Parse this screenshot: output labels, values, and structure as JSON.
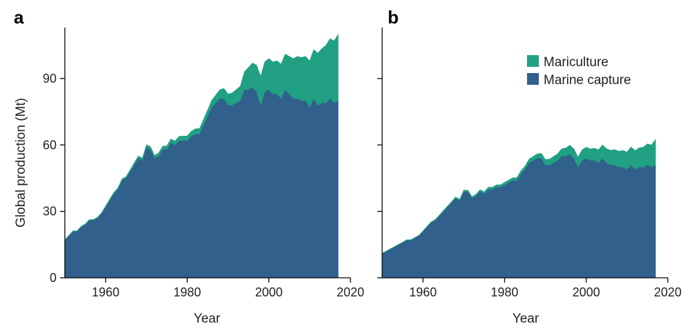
{
  "colors": {
    "mariculture": "#21a083",
    "marine_capture": "#30608b",
    "axis": "#000000"
  },
  "chart_data": [
    {
      "type": "area",
      "panel": "a",
      "stacked": true,
      "xlabel": "Year",
      "ylabel": "Global production (Mt)",
      "xlim": [
        1950,
        2020
      ],
      "ylim": [
        0,
        113
      ],
      "xticks": [
        1960,
        1980,
        2000,
        2020
      ],
      "yticks": [
        0,
        30,
        60,
        90
      ],
      "x": [
        1950,
        1951,
        1952,
        1953,
        1954,
        1955,
        1956,
        1957,
        1958,
        1959,
        1960,
        1961,
        1962,
        1963,
        1964,
        1965,
        1966,
        1967,
        1968,
        1969,
        1970,
        1971,
        1972,
        1973,
        1974,
        1975,
        1976,
        1977,
        1978,
        1979,
        1980,
        1981,
        1982,
        1983,
        1984,
        1985,
        1986,
        1987,
        1988,
        1989,
        1990,
        1991,
        1992,
        1993,
        1994,
        1995,
        1996,
        1997,
        1998,
        1999,
        2000,
        2001,
        2002,
        2003,
        2004,
        2005,
        2006,
        2007,
        2008,
        2009,
        2010,
        2011,
        2012,
        2013,
        2014,
        2015,
        2016,
        2017
      ],
      "series": [
        {
          "name": "Marine capture",
          "color_key": "marine_capture",
          "values": [
            17,
            19,
            21,
            21,
            23,
            24,
            26,
            26,
            27,
            29,
            32,
            35,
            38,
            40,
            44,
            45,
            48,
            51,
            54,
            53,
            59,
            58,
            54,
            55,
            58,
            58,
            61,
            60,
            62,
            62,
            62,
            64,
            65,
            65,
            69,
            73,
            77,
            79,
            81,
            81,
            78,
            78,
            79,
            80,
            85,
            85,
            86,
            84,
            78,
            84,
            85,
            83,
            83,
            81,
            85,
            83,
            81,
            81,
            80,
            80,
            77,
            81,
            78,
            79,
            79,
            81,
            79,
            80
          ]
        },
        {
          "name": "Mariculture",
          "color_key": "mariculture",
          "values": [
            0.2,
            0.2,
            0.2,
            0.2,
            0.3,
            0.3,
            0.3,
            0.3,
            0.4,
            0.4,
            0.5,
            0.5,
            0.6,
            0.6,
            0.7,
            0.7,
            0.8,
            0.9,
            1.0,
            1.0,
            1.1,
            1.2,
            1.3,
            1.4,
            1.5,
            1.6,
            1.7,
            1.8,
            1.9,
            2.0,
            2.1,
            2.2,
            2.3,
            2.4,
            2.6,
            2.8,
            3.2,
            3.5,
            4.0,
            4.5,
            5.0,
            5.5,
            6.0,
            6.5,
            8.0,
            10.0,
            11.0,
            12.0,
            13.0,
            13.5,
            14.0,
            14.5,
            15.0,
            15.5,
            16.0,
            17.0,
            18.0,
            19.0,
            19.5,
            20.0,
            21.0,
            22.0,
            23.5,
            24.5,
            26.0,
            27.0,
            28.0,
            30.0
          ]
        }
      ]
    },
    {
      "type": "area",
      "panel": "b",
      "stacked": true,
      "xlabel": "Year",
      "ylabel": "",
      "xlim": [
        1950,
        2020
      ],
      "ylim": [
        0,
        113
      ],
      "xticks": [
        1960,
        1980,
        2000,
        2020
      ],
      "yticks": [
        0,
        30,
        60,
        90
      ],
      "x": [
        1950,
        1951,
        1952,
        1953,
        1954,
        1955,
        1956,
        1957,
        1958,
        1959,
        1960,
        1961,
        1962,
        1963,
        1964,
        1965,
        1966,
        1967,
        1968,
        1969,
        1970,
        1971,
        1972,
        1973,
        1974,
        1975,
        1976,
        1977,
        1978,
        1979,
        1980,
        1981,
        1982,
        1983,
        1984,
        1985,
        1986,
        1987,
        1988,
        1989,
        1990,
        1991,
        1992,
        1993,
        1994,
        1995,
        1996,
        1997,
        1998,
        1999,
        2000,
        2001,
        2002,
        2003,
        2004,
        2005,
        2006,
        2007,
        2008,
        2009,
        2010,
        2011,
        2012,
        2013,
        2014,
        2015,
        2016,
        2017
      ],
      "series": [
        {
          "name": "Marine capture",
          "color_key": "marine_capture",
          "values": [
            11,
            12,
            13,
            14,
            15,
            16,
            17,
            17,
            18,
            19,
            21,
            23,
            25,
            26,
            28,
            30,
            32,
            34,
            36,
            35,
            39,
            39,
            36,
            37,
            39,
            38,
            40,
            40,
            41,
            41,
            42,
            43,
            44,
            44,
            47,
            49,
            52,
            53,
            54,
            54,
            51,
            51,
            52,
            53,
            55,
            55,
            56,
            54,
            50,
            53,
            54,
            53,
            53,
            52,
            54,
            52,
            51,
            51,
            50,
            50,
            49,
            51,
            49,
            50,
            50,
            51,
            50,
            51
          ]
        },
        {
          "name": "Mariculture",
          "color_key": "mariculture",
          "values": [
            0.1,
            0.1,
            0.1,
            0.1,
            0.1,
            0.1,
            0.2,
            0.2,
            0.2,
            0.2,
            0.2,
            0.3,
            0.3,
            0.3,
            0.3,
            0.4,
            0.4,
            0.4,
            0.5,
            0.5,
            0.6,
            0.6,
            0.7,
            0.7,
            0.8,
            0.8,
            0.9,
            0.9,
            1.0,
            1.0,
            1.1,
            1.1,
            1.2,
            1.2,
            1.3,
            1.4,
            1.6,
            1.8,
            2.0,
            2.2,
            2.4,
            2.6,
            2.8,
            3.0,
            3.3,
            3.6,
            3.9,
            4.2,
            4.5,
            4.8,
            5.0,
            5.2,
            5.5,
            5.8,
            6.0,
            6.3,
            6.6,
            6.9,
            7.2,
            7.5,
            7.8,
            8.1,
            8.4,
            8.7,
            9.0,
            9.5,
            10.0,
            11.5
          ]
        }
      ]
    }
  ],
  "legend": {
    "position": "top-right of panel b",
    "items": [
      {
        "label": "Mariculture",
        "color_key": "mariculture"
      },
      {
        "label": "Marine capture",
        "color_key": "marine_capture"
      }
    ]
  }
}
